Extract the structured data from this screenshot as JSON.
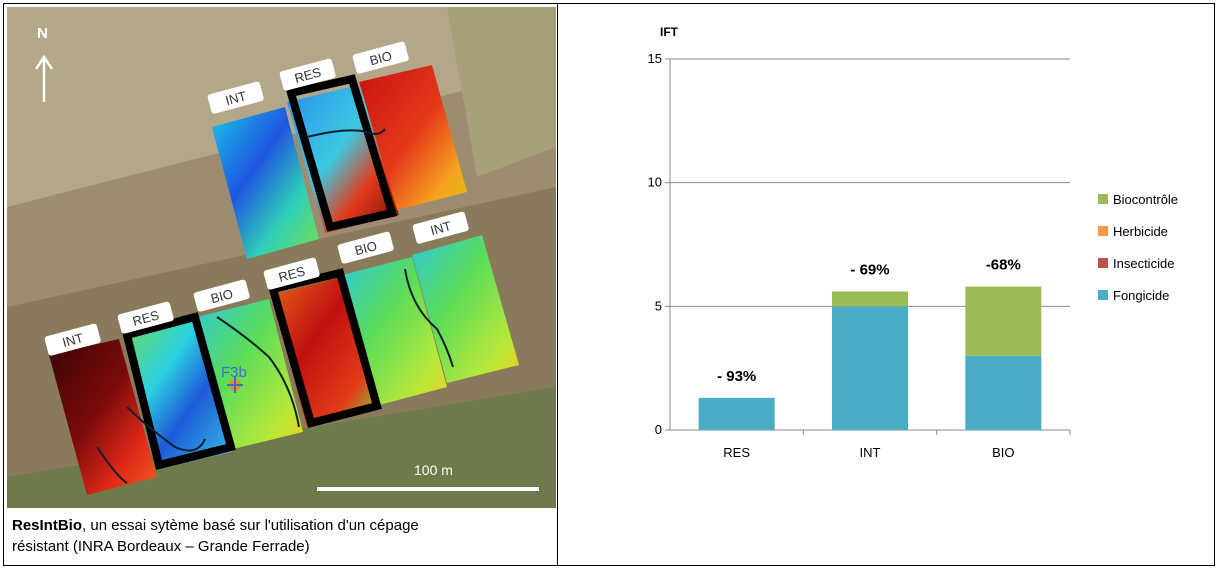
{
  "map": {
    "north_label": "N",
    "scale_label": "100 m",
    "plot_label_1": "F3b",
    "plot_labels": [
      "INT",
      "RES",
      "BIO",
      "INT",
      "RES",
      "BIO",
      "RES",
      "BIO",
      "INT"
    ]
  },
  "caption": {
    "title": "ResIntBio",
    "line1": ", un essai sytème basé sur l'utilisation d'un cépage",
    "line2": "résistant (INRA Bordeaux – Grande Ferrade)"
  },
  "chart_data": {
    "type": "bar",
    "ylabel": "IFT",
    "ylim": [
      0,
      15
    ],
    "yticks": [
      "0",
      "5",
      "10",
      "15"
    ],
    "categories": [
      "RES",
      "INT",
      "BIO"
    ],
    "series": [
      {
        "name": "Fongicide",
        "color": "#4bacc6",
        "values": [
          1.3,
          5.0,
          3.0
        ]
      },
      {
        "name": "Insecticide",
        "color": "#c0504d",
        "values": [
          0,
          0,
          0
        ]
      },
      {
        "name": "Herbicide",
        "color": "#f79646",
        "values": [
          0,
          0,
          0
        ]
      },
      {
        "name": "Biocontrôle",
        "color": "#9bbb59",
        "values": [
          0,
          0.6,
          2.8
        ]
      }
    ],
    "annotations": [
      "- 93%",
      "- 69%",
      "-68%"
    ],
    "legend_order": [
      "Biocontrôle",
      "Herbicide",
      "Insecticide",
      "Fongicide"
    ],
    "legend_position": "right",
    "grid": true
  }
}
